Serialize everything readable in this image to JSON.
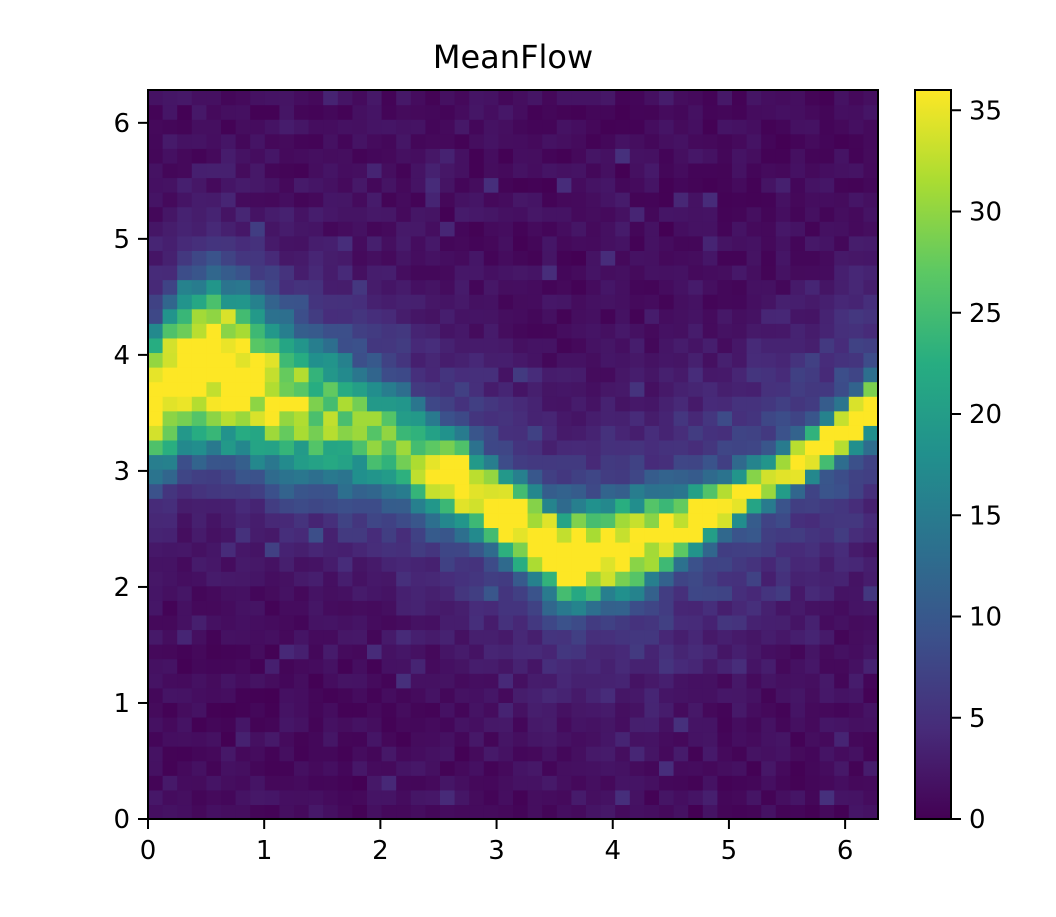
{
  "chart_data": {
    "type": "heatmap",
    "title": "MeanFlow",
    "xlabel": "",
    "ylabel": "",
    "xlim": [
      0,
      6.283
    ],
    "ylim": [
      0,
      6.283
    ],
    "bins": 50,
    "colormap": "viridis",
    "clim": [
      0,
      36
    ],
    "x_ticks": [
      "0",
      "1",
      "2",
      "3",
      "4",
      "5",
      "6"
    ],
    "y_ticks": [
      "0",
      "1",
      "2",
      "3",
      "4",
      "5",
      "6"
    ],
    "colorbar_ticks": [
      "0",
      "5",
      "10",
      "15",
      "20",
      "25",
      "30",
      "35"
    ],
    "colorbar_values": [
      0,
      5,
      10,
      15,
      20,
      25,
      30,
      35
    ],
    "density_model": {
      "ridge_points": [
        [
          0.0,
          3.55
        ],
        [
          0.3,
          3.85
        ],
        [
          0.6,
          3.95
        ],
        [
          0.9,
          3.8
        ],
        [
          1.2,
          3.62
        ],
        [
          1.5,
          3.5
        ],
        [
          1.8,
          3.4
        ],
        [
          2.1,
          3.25
        ],
        [
          2.4,
          3.05
        ],
        [
          2.7,
          2.9
        ],
        [
          3.0,
          2.7
        ],
        [
          3.3,
          2.45
        ],
        [
          3.6,
          2.25
        ],
        [
          3.9,
          2.3
        ],
        [
          4.2,
          2.38
        ],
        [
          4.5,
          2.48
        ],
        [
          4.8,
          2.62
        ],
        [
          5.1,
          2.78
        ],
        [
          5.4,
          2.95
        ],
        [
          5.7,
          3.15
        ],
        [
          6.0,
          3.35
        ],
        [
          6.283,
          3.6
        ]
      ],
      "peak_points": [
        [
          0.0,
          35
        ],
        [
          0.3,
          36
        ],
        [
          0.6,
          36
        ],
        [
          0.9,
          33
        ],
        [
          1.2,
          26
        ],
        [
          1.5,
          22
        ],
        [
          1.8,
          20
        ],
        [
          2.1,
          20
        ],
        [
          2.4,
          26
        ],
        [
          2.7,
          34
        ],
        [
          3.0,
          36
        ],
        [
          3.3,
          36
        ],
        [
          3.6,
          36
        ],
        [
          3.9,
          36
        ],
        [
          4.2,
          34
        ],
        [
          4.5,
          32
        ],
        [
          4.8,
          34
        ],
        [
          5.1,
          32
        ],
        [
          5.4,
          34
        ],
        [
          5.7,
          36
        ],
        [
          6.0,
          36
        ],
        [
          6.283,
          36
        ]
      ],
      "width_points": [
        [
          0.0,
          0.35
        ],
        [
          0.6,
          0.45
        ],
        [
          1.2,
          0.42
        ],
        [
          1.8,
          0.35
        ],
        [
          2.4,
          0.25
        ],
        [
          3.0,
          0.2
        ],
        [
          3.6,
          0.25
        ],
        [
          4.2,
          0.25
        ],
        [
          4.8,
          0.15
        ],
        [
          5.4,
          0.12
        ],
        [
          6.283,
          0.15
        ]
      ]
    }
  }
}
